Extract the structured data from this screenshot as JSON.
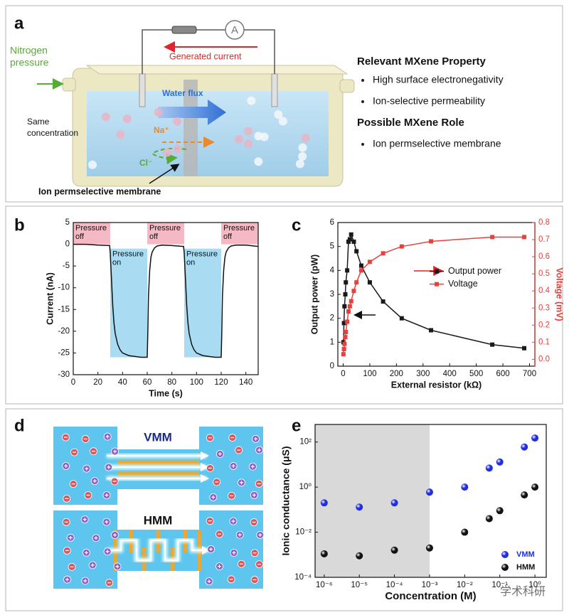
{
  "panel_labels": [
    "a",
    "b",
    "c",
    "d",
    "e"
  ],
  "panel_a": {
    "nitrogen": [
      "Nitrogen",
      "pressure"
    ],
    "current": "Generated current",
    "ammeter": "A",
    "water_flux": "Water flux",
    "sodium": "Na⁺",
    "chloride": "Cl⁻",
    "same_concentration": [
      "Same",
      "concentration"
    ],
    "membrane": "Ion permselective membrane",
    "property_heading": "Relevant MXene Property",
    "properties": [
      "High surface electronegativity",
      "Ion-selective permeability"
    ],
    "role_heading": "Possible MXene Role",
    "roles": [
      "Ion permselective membrane"
    ]
  },
  "panel_d": {
    "top": "VMM",
    "bottom": "HMM"
  },
  "watermark": "学术科研",
  "chart_data": [
    {
      "type": "line",
      "xlabel": "Time (s)",
      "ylabel": "Current (nA)",
      "xlim": [
        0,
        150
      ],
      "xticks": [
        0,
        20,
        40,
        60,
        80,
        100,
        120,
        140
      ],
      "ylim": [
        -30,
        5
      ],
      "yticks": [
        5,
        0,
        -5,
        -10,
        -15,
        -20,
        -25,
        -30
      ],
      "color": "#111111",
      "regions": [
        {
          "label": [
            "Pressure",
            "off"
          ],
          "x": [
            0,
            30
          ],
          "y": [
            0,
            5
          ],
          "color": "#f4b9c2"
        },
        {
          "label": [
            "Pressure",
            "on"
          ],
          "x": [
            30,
            60
          ],
          "y": [
            -26,
            -1
          ],
          "color": "#a9dcf3"
        },
        {
          "label": [
            "Pressure",
            "off"
          ],
          "x": [
            60,
            90
          ],
          "y": [
            0,
            5
          ],
          "color": "#f4b9c2"
        },
        {
          "label": [
            "Pressure",
            "on"
          ],
          "x": [
            90,
            120
          ],
          "y": [
            -26,
            -1
          ],
          "color": "#a9dcf3"
        },
        {
          "label": [
            "Pressure",
            "off"
          ],
          "x": [
            120,
            150
          ],
          "y": [
            0,
            5
          ],
          "color": "#f4b9c2"
        }
      ],
      "x": [
        0,
        10,
        20,
        29.5,
        30,
        31,
        32,
        33,
        34,
        36,
        38,
        40,
        45,
        50,
        55,
        60,
        60.5,
        61,
        62,
        63,
        64,
        66,
        68,
        72,
        80,
        89.5,
        90,
        91,
        92,
        93,
        94,
        96,
        98,
        100,
        105,
        110,
        115,
        120,
        120.5,
        121,
        122,
        123,
        124,
        126,
        128,
        132,
        140,
        150
      ],
      "values": [
        0,
        0,
        -0.2,
        -0.3,
        -2,
        -8,
        -14,
        -18,
        -20.5,
        -23,
        -24.3,
        -25,
        -25.6,
        -25.8,
        -26,
        -26,
        -20,
        -12,
        -6,
        -3,
        -1.8,
        -0.8,
        -0.4,
        -0.2,
        -0.3,
        -0.5,
        -2,
        -8,
        -14,
        -18,
        -20.5,
        -23,
        -24.3,
        -25,
        -25.6,
        -25.8,
        -26,
        -26,
        -20,
        -12,
        -6,
        -3,
        -1.8,
        -0.8,
        -0.4,
        -0.2,
        -0.2,
        -0.5
      ]
    },
    {
      "type": "line",
      "xlabel": "External resistor (kΩ)",
      "ylabel": "Output power (pW)",
      "y2label": "Voltage (mV)",
      "xlim": [
        -20,
        720
      ],
      "xticks": [
        0,
        100,
        200,
        300,
        400,
        500,
        600,
        700
      ],
      "ylim": [
        0,
        6
      ],
      "yticks": [
        0,
        1,
        2,
        3,
        4,
        5,
        6
      ],
      "y2lim": [
        -0.04,
        0.8
      ],
      "y2ticks": [
        {
          "value": 0,
          "label": "0.0"
        },
        0.1,
        0.2,
        0.3,
        0.4,
        0.5,
        0.6,
        0.7,
        0.8
      ],
      "y2color": "#e8413c",
      "legend": "center right",
      "x": [
        1,
        3,
        5,
        8,
        10,
        15,
        20,
        25,
        30,
        40,
        50,
        68,
        100,
        150,
        220,
        330,
        560,
        680
      ],
      "series": [
        {
          "name": "Output power",
          "color": "#1a1a1a",
          "marker": "square",
          "values": [
            1.0,
            1.8,
            2.5,
            3.0,
            3.5,
            4.0,
            5.2,
            5.3,
            5.5,
            5.2,
            4.8,
            4.2,
            3.5,
            2.7,
            2.0,
            1.5,
            0.9,
            0.75
          ]
        },
        {
          "name": "Voltage",
          "color": "#e8413c",
          "marker": "square",
          "axis": "y2",
          "values": [
            0.03,
            0.06,
            0.09,
            0.13,
            0.16,
            0.22,
            0.28,
            0.31,
            0.34,
            0.4,
            0.45,
            0.52,
            0.57,
            0.62,
            0.66,
            0.69,
            0.715,
            0.715
          ]
        }
      ]
    },
    {
      "type": "scatter",
      "xlabel": "Concentration (M)",
      "ylabel": "Ionic conductance (μS)",
      "xscale": "log",
      "yscale": "log",
      "xlim": [
        5.5e-07,
        2.1
      ],
      "xticks": [
        {
          "value": 1e-06,
          "label": "10⁻⁶"
        },
        {
          "value": 1e-05,
          "label": "10⁻⁵"
        },
        {
          "value": 0.0001,
          "label": "10⁻⁴"
        },
        {
          "value": 0.001,
          "label": "10⁻³"
        },
        {
          "value": 0.01,
          "label": "10⁻²"
        },
        {
          "value": 0.1,
          "label": "10⁻¹"
        },
        {
          "value": 1,
          "label": "10⁰"
        }
      ],
      "ylim": [
        0.0001,
        600
      ],
      "yticks": [
        {
          "value": 0.0001,
          "label": "10⁻⁴"
        },
        {
          "value": 0.01,
          "label": "10⁻²"
        },
        {
          "value": 1,
          "label": "10⁰"
        },
        {
          "value": 100,
          "label": "10²"
        }
      ],
      "shade_below_x": 0.001,
      "shade_color": "#d9d9d9",
      "legend": "lower right",
      "x": [
        1e-06,
        1e-05,
        0.0001,
        0.001,
        0.01,
        0.05,
        0.1,
        0.5,
        1
      ],
      "series": [
        {
          "name": "VMM",
          "color": "#1f2fe0",
          "marker": "sphere",
          "values": [
            0.2,
            0.13,
            0.2,
            0.6,
            1.0,
            7,
            13,
            60,
            150
          ]
        },
        {
          "name": "HMM",
          "color": "#111111",
          "marker": "sphere",
          "values": [
            0.0011,
            0.0009,
            0.0016,
            0.002,
            0.01,
            0.04,
            0.09,
            0.45,
            1.0
          ]
        }
      ]
    }
  ]
}
